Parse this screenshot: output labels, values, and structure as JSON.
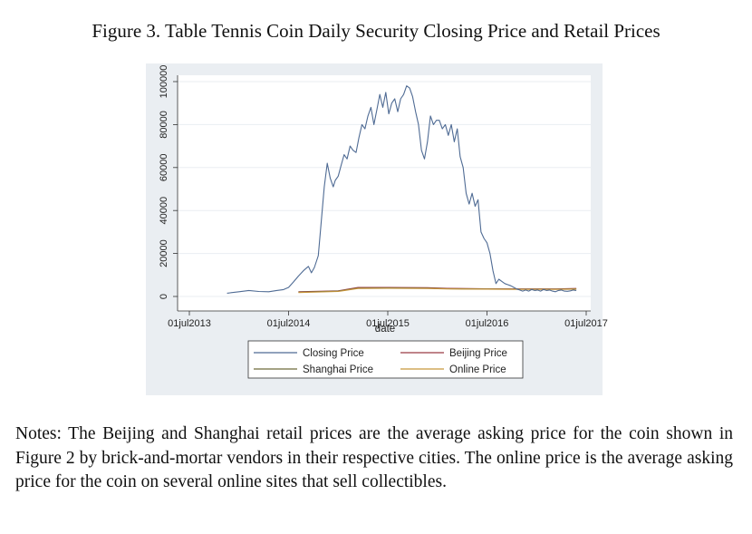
{
  "figure": {
    "title": "Figure 3. Table Tennis Coin Daily Security Closing Price and Retail Prices"
  },
  "notes": "Notes: The Beijing and Shanghai retail prices are the average asking price for the coin shown in Figure 2 by brick-and-mortar vendors in their respective cities. The online price is the average asking price for the coin on several online sites that sell collectibles.",
  "chart_data": {
    "type": "line",
    "title": "",
    "xlabel": "date",
    "ylabel": "",
    "x_unit": "years since 01jan2013",
    "xlim": [
      0.5,
      4.5
    ],
    "ylim": [
      0,
      100000
    ],
    "grid": true,
    "legend_position": "bottom",
    "x_ticks": [
      {
        "value": 0.5,
        "label": "01jul2013"
      },
      {
        "value": 1.5,
        "label": "01jul2014"
      },
      {
        "value": 2.5,
        "label": "01jul2015"
      },
      {
        "value": 3.5,
        "label": "01jul2016"
      },
      {
        "value": 4.5,
        "label": "01jul2017"
      }
    ],
    "y_ticks": [
      {
        "value": 0,
        "label": "0"
      },
      {
        "value": 20000,
        "label": "20000"
      },
      {
        "value": 40000,
        "label": "40000"
      },
      {
        "value": 60000,
        "label": "60000"
      },
      {
        "value": 80000,
        "label": "80000"
      },
      {
        "value": 100000,
        "label": "100000"
      }
    ],
    "series": [
      {
        "name": "Closing Price",
        "color": "#4f6b94",
        "x": [
          0.88,
          1.0,
          1.1,
          1.2,
          1.3,
          1.38,
          1.45,
          1.5,
          1.55,
          1.6,
          1.65,
          1.7,
          1.73,
          1.76,
          1.8,
          1.83,
          1.86,
          1.89,
          1.92,
          1.95,
          1.97,
          2.0,
          2.03,
          2.06,
          2.09,
          2.12,
          2.15,
          2.18,
          2.21,
          2.24,
          2.27,
          2.3,
          2.33,
          2.36,
          2.39,
          2.42,
          2.45,
          2.48,
          2.51,
          2.54,
          2.57,
          2.6,
          2.63,
          2.66,
          2.69,
          2.72,
          2.75,
          2.78,
          2.81,
          2.84,
          2.87,
          2.9,
          2.93,
          2.96,
          2.99,
          3.02,
          3.05,
          3.08,
          3.11,
          3.14,
          3.17,
          3.2,
          3.23,
          3.26,
          3.29,
          3.32,
          3.35,
          3.38,
          3.41,
          3.44,
          3.47,
          3.5,
          3.53,
          3.56,
          3.59,
          3.62,
          3.65,
          3.68,
          3.71,
          3.74,
          3.77,
          3.8,
          3.83,
          3.86,
          3.89,
          3.92,
          3.95,
          3.98,
          4.01,
          4.04,
          4.07,
          4.1,
          4.13,
          4.16,
          4.19,
          4.22,
          4.25,
          4.28,
          4.31,
          4.34,
          4.37,
          4.4
        ],
        "values": [
          1500,
          2200,
          2800,
          2300,
          2200,
          2800,
          3200,
          4200,
          6800,
          9500,
          12000,
          14000,
          11000,
          13500,
          19000,
          35000,
          51000,
          62000,
          55000,
          51000,
          54000,
          56000,
          61000,
          66000,
          64000,
          70000,
          68000,
          67000,
          74000,
          80000,
          78000,
          84000,
          88000,
          80000,
          87000,
          94000,
          88000,
          95000,
          85000,
          90000,
          92000,
          86000,
          92000,
          94000,
          98000,
          97000,
          93000,
          86000,
          80000,
          68000,
          64000,
          72000,
          84000,
          80000,
          82000,
          82000,
          78000,
          80000,
          75000,
          80000,
          72000,
          78000,
          65000,
          60000,
          48000,
          43000,
          48000,
          42000,
          45000,
          30000,
          27000,
          25000,
          20000,
          12000,
          6000,
          8000,
          7000,
          6000,
          5500,
          5000,
          4200,
          3500,
          3000,
          2500,
          3000,
          2500,
          3200,
          2800,
          3000,
          2500,
          3200,
          2800,
          3000,
          2500,
          2200,
          2800,
          3000,
          2500,
          2400,
          2600,
          3000,
          2800
        ]
      },
      {
        "name": "Beijing Price",
        "color": "#9a3b45",
        "x": [
          1.6,
          2.0,
          2.2,
          2.5,
          2.9,
          3.1,
          3.5,
          3.8,
          4.2,
          4.4
        ],
        "values": [
          2200,
          2600,
          4200,
          4200,
          4100,
          3800,
          3600,
          3500,
          3500,
          3700
        ]
      },
      {
        "name": "Shanghai Price",
        "color": "#6e6a3a",
        "x": [
          1.6,
          2.0,
          2.2,
          2.5,
          2.9,
          3.1,
          3.5,
          3.8,
          4.2,
          4.4
        ],
        "values": [
          2000,
          2500,
          3900,
          4000,
          3900,
          3600,
          3500,
          3400,
          3400,
          3500
        ]
      },
      {
        "name": "Online Price",
        "color": "#c8963a",
        "x": [
          1.6,
          2.0,
          2.2,
          2.5,
          2.9,
          3.1,
          3.5,
          3.8,
          4.2,
          4.4
        ],
        "values": [
          1800,
          2300,
          3700,
          3800,
          3700,
          3500,
          3400,
          3300,
          3300,
          3400
        ]
      }
    ],
    "legend": [
      {
        "label": "Closing Price",
        "color": "#4f6b94"
      },
      {
        "label": "Beijing Price",
        "color": "#9a3b45"
      },
      {
        "label": "Shanghai Price",
        "color": "#6e6a3a"
      },
      {
        "label": "Online Price",
        "color": "#c8963a"
      }
    ]
  }
}
